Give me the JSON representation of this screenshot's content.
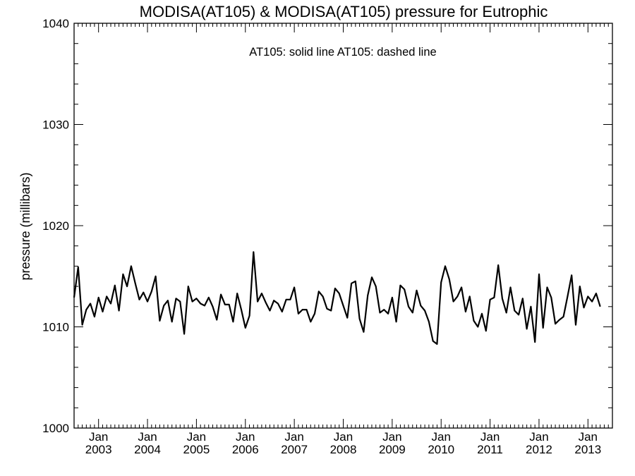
{
  "chart_data": {
    "type": "line",
    "title": "MODISA(AT105) & MODISA(AT105)  pressure for Eutrophic",
    "ylabel": "pressure (millibars)",
    "xlabel": "",
    "ylim": [
      1000,
      1040
    ],
    "yticks": [
      "1000",
      "1010",
      "1020",
      "1030",
      "1040"
    ],
    "xlim": [
      "2002-07-01",
      "2013-07-01"
    ],
    "x_tick_month": "Jan",
    "x_tick_years": [
      "2003",
      "2004",
      "2005",
      "2006",
      "2007",
      "2008",
      "2009",
      "2010",
      "2011",
      "2012",
      "2013"
    ],
    "legend_text": "AT105: solid line   AT105: dashed line",
    "legend_position": "top-center",
    "grid": false,
    "series": [
      {
        "style": "solid",
        "color": "#000000",
        "start": "2002-07",
        "step": "1 month",
        "values": [
          1012.9,
          1015.9,
          1010.2,
          1011.7,
          1012.3,
          1011.0,
          1012.9,
          1011.5,
          1013.0,
          1012.3,
          1014.1,
          1011.6,
          1015.2,
          1014.0,
          1016.0,
          1014.3,
          1012.7,
          1013.4,
          1012.5,
          1013.5,
          1015.0,
          1010.6,
          1012.1,
          1012.6,
          1010.5,
          1012.8,
          1012.5,
          1009.3,
          1014.0,
          1012.5,
          1012.8,
          1012.3,
          1012.1,
          1012.9,
          1012.0,
          1010.7,
          1013.2,
          1012.2,
          1012.2,
          1010.5,
          1013.3,
          1011.7,
          1009.9,
          1011.1,
          1017.4,
          1012.5,
          1013.3,
          1012.4,
          1011.6,
          1012.6,
          1012.3,
          1011.5,
          1012.7,
          1012.7,
          1013.9,
          1011.3,
          1011.7,
          1011.7,
          1010.5,
          1011.3,
          1013.5,
          1013.0,
          1011.8,
          1011.6,
          1013.8,
          1013.3,
          1012.1,
          1010.9,
          1014.3,
          1014.5,
          1010.8,
          1009.5,
          1013.1,
          1014.9,
          1014.0,
          1011.4,
          1011.7,
          1011.3,
          1012.9,
          1010.5,
          1014.1,
          1013.7,
          1012.0,
          1011.4,
          1013.6,
          1012.1,
          1011.6,
          1010.5,
          1008.6,
          1008.3,
          1014.4,
          1016.0,
          1014.7,
          1012.5,
          1013.0,
          1013.9,
          1011.5,
          1013.0,
          1010.6,
          1010.0,
          1011.3,
          1009.6,
          1012.7,
          1012.9,
          1016.1,
          1012.8,
          1011.4,
          1013.9,
          1011.6,
          1011.2,
          1012.8,
          1009.8,
          1012.0,
          1008.5,
          1015.2,
          1009.9,
          1013.9,
          1012.9,
          1010.3,
          1010.7,
          1011.0,
          1013.0,
          1015.1,
          1010.2,
          1014.0,
          1011.9,
          1013.0,
          1012.5,
          1013.3,
          1012.0
        ]
      }
    ]
  }
}
